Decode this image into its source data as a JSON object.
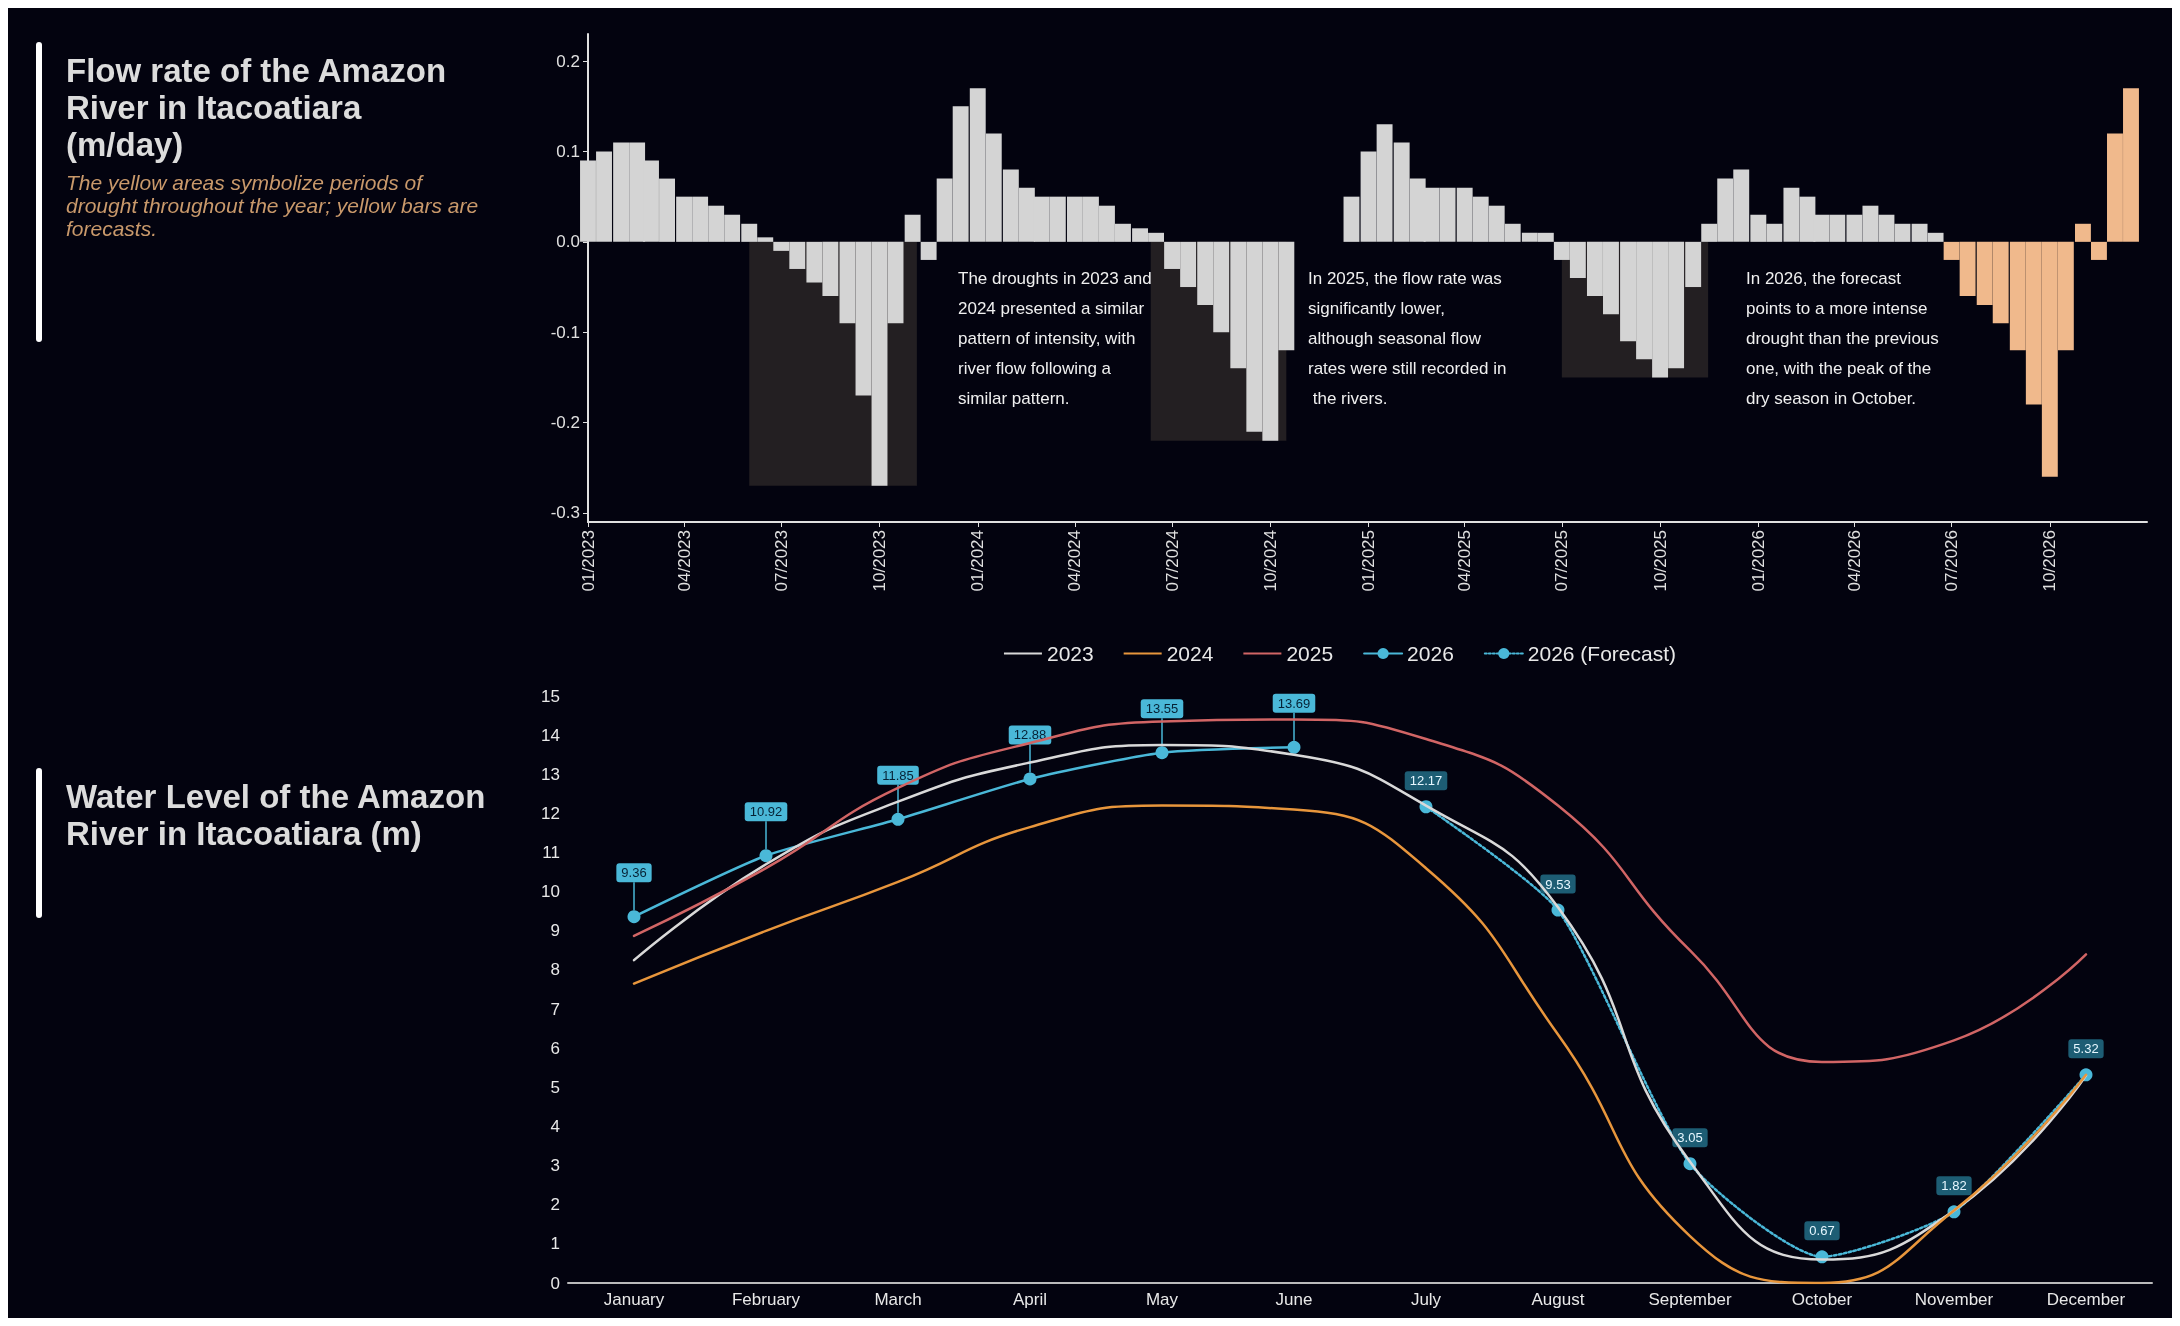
{
  "chart_data": [
    {
      "type": "bar",
      "title": "Flow rate of the Amazon River in Itacoatiara (m/day)",
      "subtitle": "The yellow areas symbolize periods of drought throughout the year; yellow bars are forecasts.",
      "annotations": [
        "The droughts in 2023 and 2024 presented a similar pattern of intensity, with river flow following a similar pattern.",
        "In 2025, the flow rate was significantly lower, although seasonal flow rates were still recorded in the rivers.",
        "In 2026, the forecast points to a more intense drought than the previous one, with the peak of the dry season in October."
      ],
      "xlim": [
        "2023-01-01",
        "2026-12-31"
      ],
      "xticks": [
        {
          "value": "2023-01-01",
          "label": "01/2023"
        },
        {
          "value": "2023-04-01",
          "label": "04/2023"
        },
        {
          "value": "2023-07-01",
          "label": "07/2023"
        },
        {
          "value": "2023-10-01",
          "label": "10/2023"
        },
        {
          "value": "2024-01-01",
          "label": "01/2024"
        },
        {
          "value": "2024-04-01",
          "label": "04/2024"
        },
        {
          "value": "2024-07-01",
          "label": "07/2024"
        },
        {
          "value": "2024-10-01",
          "label": "10/2024"
        },
        {
          "value": "2025-01-01",
          "label": "01/2025"
        },
        {
          "value": "2025-04-01",
          "label": "04/2025"
        },
        {
          "value": "2025-07-01",
          "label": "07/2025"
        },
        {
          "value": "2025-10-01",
          "label": "10/2025"
        },
        {
          "value": "2026-01-01",
          "label": "01/2026"
        },
        {
          "value": "2026-04-01",
          "label": "04/2026"
        },
        {
          "value": "2026-07-01",
          "label": "07/2026"
        },
        {
          "value": "2026-10-01",
          "label": "10/2026"
        }
      ],
      "ylim": [
        -0.31,
        0.23
      ],
      "yticks": [
        -0.3,
        -0.2,
        -0.1,
        {
          "value": 0,
          "label": "0.0"
        },
        0.1,
        0.2
      ],
      "grid": false,
      "legend": false,
      "bands": [
        {
          "axis": "x",
          "from": "2023-06-01",
          "to": "2023-11-05",
          "color": "#231f22"
        },
        {
          "axis": "x",
          "from": "2024-06-11",
          "to": "2024-10-16",
          "color": "#231f22"
        },
        {
          "axis": "x",
          "from": "2025-07-01",
          "to": "2025-11-15",
          "color": "#231f22"
        }
      ],
      "series": [
        {
          "color": "#d4d4d4",
          "x": [
            "2023-01-01",
            "2023-01-16",
            "2023-02-01",
            "2023-02-16",
            "2023-03-01",
            "2023-03-16",
            "2023-04-01",
            "2023-04-16",
            "2023-05-01",
            "2023-05-16",
            "2023-06-01",
            "2023-06-16",
            "2023-07-01",
            "2023-07-16",
            "2023-08-01",
            "2023-08-16",
            "2023-09-01",
            "2023-09-16",
            "2023-10-01",
            "2023-10-16",
            "2023-11-01",
            "2023-11-16",
            "2023-12-01",
            "2023-12-16",
            "2024-01-01",
            "2024-01-16",
            "2024-02-01",
            "2024-02-16",
            "2024-03-01",
            "2024-03-16",
            "2024-04-01",
            "2024-04-16",
            "2024-05-01",
            "2024-05-16",
            "2024-06-01",
            "2024-06-16",
            "2024-07-01",
            "2024-07-16",
            "2024-08-01",
            "2024-08-16",
            "2024-09-01",
            "2024-09-16",
            "2024-10-01",
            "2024-10-16",
            "2024-11-01",
            "2024-11-16",
            "2024-12-01",
            "2024-12-16",
            "2025-01-01",
            "2025-01-16",
            "2025-02-01",
            "2025-02-16",
            "2025-03-01",
            "2025-03-16",
            "2025-04-01",
            "2025-04-16",
            "2025-05-01",
            "2025-05-16",
            "2025-06-01",
            "2025-06-16",
            "2025-07-01",
            "2025-07-16",
            "2025-08-01",
            "2025-08-16",
            "2025-09-01",
            "2025-09-16",
            "2025-10-01",
            "2025-10-16",
            "2025-11-01",
            "2025-11-16",
            "2025-12-01",
            "2025-12-16",
            "2026-01-01",
            "2026-01-16",
            "2026-02-01",
            "2026-02-16",
            "2026-03-01",
            "2026-03-16",
            "2026-04-01",
            "2026-04-16",
            "2026-05-01",
            "2026-05-16",
            "2026-06-01",
            "2026-06-16"
          ],
          "values": [
            0.09,
            0.1,
            0.11,
            0.11,
            0.09,
            0.07,
            0.05,
            0.05,
            0.04,
            0.03,
            0.02,
            0.005,
            -0.01,
            -0.03,
            -0.045,
            -0.06,
            -0.09,
            -0.17,
            -0.27,
            -0.09,
            0.03,
            -0.02,
            0.07,
            0.15,
            0.17,
            0.12,
            0.08,
            0.06,
            0.05,
            0.05,
            0.05,
            0.05,
            0.04,
            0.02,
            0.015,
            0.01,
            -0.03,
            -0.05,
            -0.07,
            -0.1,
            -0.14,
            -0.21,
            -0.22,
            -0.12,
            0.0,
            0.0,
            0.0,
            0.05,
            0.1,
            0.13,
            0.11,
            0.07,
            0.06,
            0.06,
            0.06,
            0.05,
            0.04,
            0.02,
            0.01,
            0.01,
            -0.02,
            -0.04,
            -0.06,
            -0.08,
            -0.11,
            -0.13,
            -0.15,
            -0.14,
            -0.05,
            0.02,
            0.07,
            0.08,
            0.03,
            0.02,
            0.06,
            0.05,
            0.03,
            0.03,
            0.03,
            0.04,
            0.03,
            0.02,
            0.02,
            0.01
          ]
        },
        {
          "color": "#f0b98c",
          "x": [
            "2026-07-01",
            "2026-07-16",
            "2026-08-01",
            "2026-08-16",
            "2026-09-01",
            "2026-09-16",
            "2026-10-01",
            "2026-10-16",
            "2026-11-01",
            "2026-11-16",
            "2026-12-01",
            "2026-12-16"
          ],
          "values": [
            -0.02,
            -0.06,
            -0.07,
            -0.09,
            -0.12,
            -0.18,
            -0.26,
            -0.12,
            0.02,
            -0.02,
            0.12,
            0.17
          ]
        }
      ]
    },
    {
      "type": "line",
      "title": "Water Level of the Amazon River in Itacoatiara (m)",
      "categories": [
        "January",
        "February",
        "March",
        "April",
        "May",
        "June",
        "July",
        "August",
        "September",
        "October",
        "November",
        "December"
      ],
      "ylim": [
        0,
        15
      ],
      "yticks": [
        0,
        1,
        2,
        3,
        4,
        5,
        6,
        7,
        8,
        9,
        10,
        11,
        12,
        13,
        14,
        15
      ],
      "grid": false,
      "legend": "top",
      "series": [
        {
          "name": "2023",
          "color": "#d9d9d9",
          "marker": "none",
          "line_style": "solid",
          "values": [
            8.25,
            10.7,
            12.3,
            13.3,
            13.75,
            13.5,
            12.2,
            9.6,
            3.1,
            0.6,
            1.85,
            5.3
          ]
        },
        {
          "name": "2024",
          "color": "#e8963c",
          "marker": "none",
          "line_style": "solid",
          "values": [
            7.65,
            9.0,
            10.25,
            11.65,
            12.2,
            12.1,
            10.6,
            6.35,
            1.2,
            0.0,
            1.85,
            5.32
          ]
        },
        {
          "name": "2025",
          "color": "#d16565",
          "marker": "none",
          "line_style": "solid",
          "values": [
            8.87,
            10.6,
            12.65,
            13.8,
            14.35,
            14.4,
            13.9,
            12.2,
            8.5,
            5.65,
            6.2,
            8.4
          ]
        },
        {
          "name": "2026",
          "color": "#4ab8d8",
          "marker": "circle",
          "line_style": "solid",
          "values": [
            9.36,
            10.92,
            11.85,
            12.88,
            13.55,
            13.69,
            null,
            null,
            null,
            null,
            null,
            null
          ],
          "value_labels": [
            "9.36",
            "10.92",
            "11.85",
            "12.88",
            "13.55",
            "13.69",
            null,
            null,
            null,
            null,
            null,
            null
          ]
        },
        {
          "name": "2026 (Forecast)",
          "color": "#4ab8d8",
          "marker": "circle",
          "line_style": "dotted",
          "values": [
            null,
            null,
            null,
            null,
            null,
            null,
            12.17,
            9.53,
            3.05,
            0.67,
            1.82,
            5.32
          ],
          "value_labels": [
            null,
            null,
            null,
            null,
            null,
            null,
            "12.17",
            "9.53",
            "3.05",
            "0.67",
            "1.82",
            "5.32"
          ]
        }
      ]
    }
  ]
}
